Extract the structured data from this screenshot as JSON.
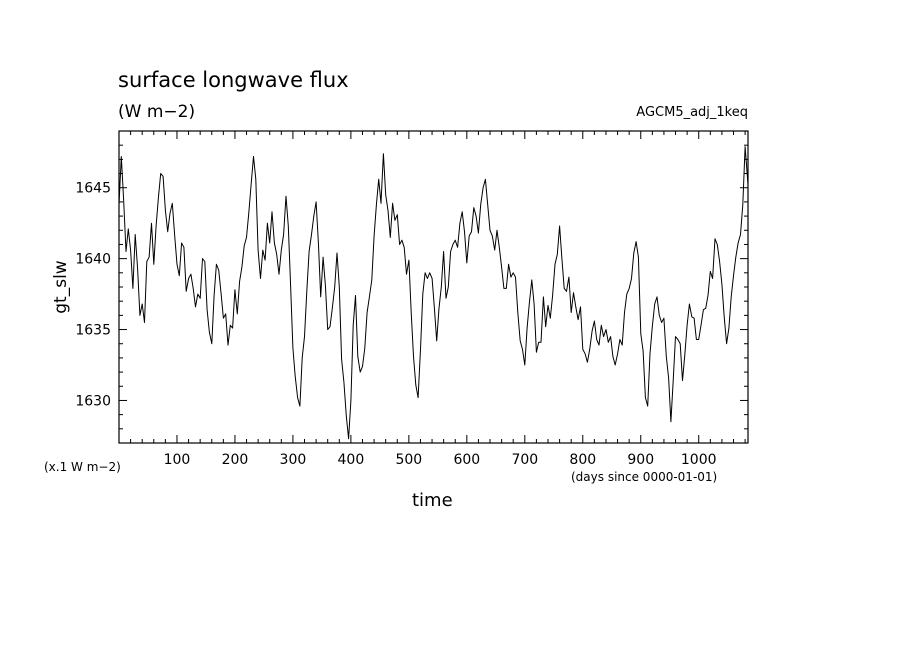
{
  "chart_data": {
    "type": "line",
    "title": "surface longwave flux",
    "subtitle": "(W m−2)",
    "annotation_right": "AGCM5_adj_1keq",
    "xlabel": "time",
    "x_units": "(days since 0000-01-01)",
    "ylabel": "gt_slw",
    "y_scale_note": "(x.1 W m−2)",
    "xlim": [
      0,
      1085
    ],
    "ylim": [
      1627,
      1649
    ],
    "x_ticks": [
      100,
      200,
      300,
      400,
      500,
      600,
      700,
      800,
      900,
      1000
    ],
    "y_ticks": [
      1630,
      1635,
      1640,
      1645
    ],
    "x_minor_step": 20,
    "y_minor_step": 1,
    "series": [
      {
        "color": "#000000",
        "points": [
          [
            0,
            1643.8
          ],
          [
            4,
            1647.2
          ],
          [
            8,
            1644.2
          ],
          [
            12,
            1640.5
          ],
          [
            16,
            1642.1
          ],
          [
            20,
            1640.6
          ],
          [
            24,
            1637.9
          ],
          [
            28,
            1641.7
          ],
          [
            32,
            1639.3
          ],
          [
            36,
            1636.0
          ],
          [
            40,
            1636.8
          ],
          [
            44,
            1635.5
          ],
          [
            48,
            1639.8
          ],
          [
            52,
            1640.1
          ],
          [
            56,
            1642.5
          ],
          [
            60,
            1639.6
          ],
          [
            64,
            1642.3
          ],
          [
            68,
            1644.3
          ],
          [
            72,
            1646.0
          ],
          [
            76,
            1645.8
          ],
          [
            80,
            1643.4
          ],
          [
            84,
            1641.9
          ],
          [
            88,
            1643.2
          ],
          [
            92,
            1643.9
          ],
          [
            96,
            1641.6
          ],
          [
            100,
            1639.6
          ],
          [
            104,
            1638.8
          ],
          [
            108,
            1641.1
          ],
          [
            112,
            1640.8
          ],
          [
            116,
            1637.7
          ],
          [
            120,
            1638.6
          ],
          [
            124,
            1638.9
          ],
          [
            128,
            1637.9
          ],
          [
            132,
            1636.6
          ],
          [
            136,
            1637.5
          ],
          [
            140,
            1637.2
          ],
          [
            144,
            1640.0
          ],
          [
            148,
            1639.8
          ],
          [
            152,
            1636.4
          ],
          [
            156,
            1634.8
          ],
          [
            160,
            1634.0
          ],
          [
            164,
            1637.4
          ],
          [
            168,
            1639.6
          ],
          [
            172,
            1639.2
          ],
          [
            176,
            1637.6
          ],
          [
            180,
            1635.8
          ],
          [
            184,
            1636.1
          ],
          [
            188,
            1633.9
          ],
          [
            192,
            1635.3
          ],
          [
            196,
            1635.1
          ],
          [
            200,
            1637.8
          ],
          [
            204,
            1636.1
          ],
          [
            208,
            1638.4
          ],
          [
            212,
            1639.4
          ],
          [
            216,
            1640.9
          ],
          [
            220,
            1641.5
          ],
          [
            224,
            1643.3
          ],
          [
            228,
            1645.3
          ],
          [
            232,
            1647.2
          ],
          [
            236,
            1645.6
          ],
          [
            240,
            1640.6
          ],
          [
            244,
            1638.6
          ],
          [
            248,
            1640.6
          ],
          [
            252,
            1639.9
          ],
          [
            256,
            1642.5
          ],
          [
            260,
            1641.1
          ],
          [
            264,
            1643.3
          ],
          [
            268,
            1641.1
          ],
          [
            272,
            1640.3
          ],
          [
            276,
            1638.9
          ],
          [
            280,
            1640.6
          ],
          [
            284,
            1641.7
          ],
          [
            288,
            1644.4
          ],
          [
            292,
            1642.3
          ],
          [
            296,
            1638.1
          ],
          [
            300,
            1633.7
          ],
          [
            304,
            1631.7
          ],
          [
            308,
            1630.2
          ],
          [
            312,
            1629.6
          ],
          [
            316,
            1633.0
          ],
          [
            320,
            1634.5
          ],
          [
            324,
            1637.7
          ],
          [
            328,
            1640.5
          ],
          [
            332,
            1641.7
          ],
          [
            336,
            1643.0
          ],
          [
            340,
            1644.0
          ],
          [
            344,
            1641.1
          ],
          [
            348,
            1637.3
          ],
          [
            352,
            1640.1
          ],
          [
            356,
            1638.1
          ],
          [
            360,
            1635.0
          ],
          [
            364,
            1635.2
          ],
          [
            368,
            1636.5
          ],
          [
            372,
            1638.0
          ],
          [
            376,
            1640.4
          ],
          [
            380,
            1638.0
          ],
          [
            384,
            1632.9
          ],
          [
            388,
            1631.3
          ],
          [
            392,
            1628.9
          ],
          [
            396,
            1627.3
          ],
          [
            400,
            1630.0
          ],
          [
            404,
            1635.3
          ],
          [
            408,
            1637.4
          ],
          [
            412,
            1633.1
          ],
          [
            416,
            1632.0
          ],
          [
            420,
            1632.4
          ],
          [
            424,
            1633.7
          ],
          [
            428,
            1636.2
          ],
          [
            432,
            1637.3
          ],
          [
            436,
            1638.5
          ],
          [
            440,
            1641.6
          ],
          [
            444,
            1643.8
          ],
          [
            448,
            1645.6
          ],
          [
            452,
            1643.9
          ],
          [
            456,
            1647.4
          ],
          [
            460,
            1644.5
          ],
          [
            464,
            1643.4
          ],
          [
            468,
            1641.5
          ],
          [
            472,
            1643.9
          ],
          [
            476,
            1642.7
          ],
          [
            480,
            1643.1
          ],
          [
            484,
            1641.0
          ],
          [
            488,
            1641.3
          ],
          [
            492,
            1640.8
          ],
          [
            496,
            1638.9
          ],
          [
            500,
            1639.9
          ],
          [
            504,
            1636.2
          ],
          [
            508,
            1633.1
          ],
          [
            512,
            1631.1
          ],
          [
            516,
            1630.2
          ],
          [
            520,
            1633.6
          ],
          [
            524,
            1637.5
          ],
          [
            528,
            1639.0
          ],
          [
            532,
            1638.6
          ],
          [
            536,
            1639.0
          ],
          [
            540,
            1638.6
          ],
          [
            544,
            1636.5
          ],
          [
            548,
            1634.2
          ],
          [
            552,
            1636.5
          ],
          [
            556,
            1638.0
          ],
          [
            560,
            1640.5
          ],
          [
            564,
            1637.2
          ],
          [
            568,
            1638.0
          ],
          [
            572,
            1640.5
          ],
          [
            576,
            1641.0
          ],
          [
            580,
            1641.3
          ],
          [
            584,
            1640.8
          ],
          [
            588,
            1642.5
          ],
          [
            592,
            1643.3
          ],
          [
            596,
            1641.9
          ],
          [
            600,
            1639.7
          ],
          [
            604,
            1641.6
          ],
          [
            608,
            1641.9
          ],
          [
            612,
            1643.6
          ],
          [
            616,
            1643.0
          ],
          [
            620,
            1641.8
          ],
          [
            624,
            1643.8
          ],
          [
            628,
            1645.0
          ],
          [
            632,
            1645.6
          ],
          [
            636,
            1643.8
          ],
          [
            640,
            1642.0
          ],
          [
            644,
            1641.6
          ],
          [
            648,
            1640.6
          ],
          [
            652,
            1642.0
          ],
          [
            656,
            1640.8
          ],
          [
            660,
            1639.4
          ],
          [
            664,
            1637.9
          ],
          [
            668,
            1637.9
          ],
          [
            672,
            1639.6
          ],
          [
            676,
            1638.7
          ],
          [
            680,
            1639.0
          ],
          [
            684,
            1638.7
          ],
          [
            688,
            1636.2
          ],
          [
            692,
            1634.2
          ],
          [
            696,
            1633.6
          ],
          [
            700,
            1632.5
          ],
          [
            704,
            1635.1
          ],
          [
            708,
            1636.9
          ],
          [
            712,
            1638.5
          ],
          [
            716,
            1636.8
          ],
          [
            720,
            1633.4
          ],
          [
            724,
            1634.1
          ],
          [
            728,
            1634.1
          ],
          [
            732,
            1637.3
          ],
          [
            736,
            1635.2
          ],
          [
            740,
            1636.7
          ],
          [
            744,
            1635.8
          ],
          [
            748,
            1637.4
          ],
          [
            752,
            1639.6
          ],
          [
            756,
            1640.3
          ],
          [
            760,
            1642.3
          ],
          [
            764,
            1640.0
          ],
          [
            768,
            1637.9
          ],
          [
            772,
            1637.7
          ],
          [
            776,
            1638.7
          ],
          [
            780,
            1636.2
          ],
          [
            784,
            1637.6
          ],
          [
            788,
            1636.6
          ],
          [
            792,
            1635.7
          ],
          [
            796,
            1636.6
          ],
          [
            800,
            1633.6
          ],
          [
            804,
            1633.3
          ],
          [
            808,
            1632.7
          ],
          [
            812,
            1633.6
          ],
          [
            816,
            1634.9
          ],
          [
            820,
            1635.6
          ],
          [
            824,
            1634.3
          ],
          [
            828,
            1633.9
          ],
          [
            832,
            1635.3
          ],
          [
            836,
            1634.5
          ],
          [
            840,
            1635.0
          ],
          [
            844,
            1634.1
          ],
          [
            848,
            1634.5
          ],
          [
            852,
            1633.1
          ],
          [
            856,
            1632.5
          ],
          [
            860,
            1633.3
          ],
          [
            864,
            1634.3
          ],
          [
            868,
            1633.9
          ],
          [
            872,
            1636.2
          ],
          [
            876,
            1637.5
          ],
          [
            880,
            1637.9
          ],
          [
            884,
            1638.6
          ],
          [
            888,
            1640.4
          ],
          [
            892,
            1641.2
          ],
          [
            896,
            1640.1
          ],
          [
            900,
            1634.7
          ],
          [
            904,
            1633.5
          ],
          [
            908,
            1630.2
          ],
          [
            912,
            1629.6
          ],
          [
            916,
            1633.3
          ],
          [
            920,
            1635.2
          ],
          [
            924,
            1636.8
          ],
          [
            928,
            1637.3
          ],
          [
            932,
            1636.0
          ],
          [
            936,
            1635.5
          ],
          [
            940,
            1635.8
          ],
          [
            944,
            1633.1
          ],
          [
            948,
            1631.6
          ],
          [
            952,
            1628.5
          ],
          [
            956,
            1631.4
          ],
          [
            960,
            1634.5
          ],
          [
            964,
            1634.3
          ],
          [
            968,
            1634.0
          ],
          [
            972,
            1631.4
          ],
          [
            976,
            1633.2
          ],
          [
            980,
            1635.3
          ],
          [
            984,
            1636.8
          ],
          [
            988,
            1635.9
          ],
          [
            992,
            1635.8
          ],
          [
            996,
            1634.3
          ],
          [
            1000,
            1634.3
          ],
          [
            1004,
            1635.3
          ],
          [
            1008,
            1636.4
          ],
          [
            1012,
            1636.5
          ],
          [
            1016,
            1637.4
          ],
          [
            1020,
            1639.1
          ],
          [
            1024,
            1638.6
          ],
          [
            1028,
            1641.4
          ],
          [
            1032,
            1641.0
          ],
          [
            1036,
            1639.8
          ],
          [
            1040,
            1638.2
          ],
          [
            1044,
            1635.9
          ],
          [
            1048,
            1634.0
          ],
          [
            1052,
            1635.1
          ],
          [
            1056,
            1637.3
          ],
          [
            1060,
            1638.8
          ],
          [
            1064,
            1640.1
          ],
          [
            1068,
            1641.1
          ],
          [
            1072,
            1641.7
          ],
          [
            1076,
            1643.8
          ],
          [
            1080,
            1647.9
          ],
          [
            1085,
            1645.2
          ]
        ]
      }
    ]
  }
}
